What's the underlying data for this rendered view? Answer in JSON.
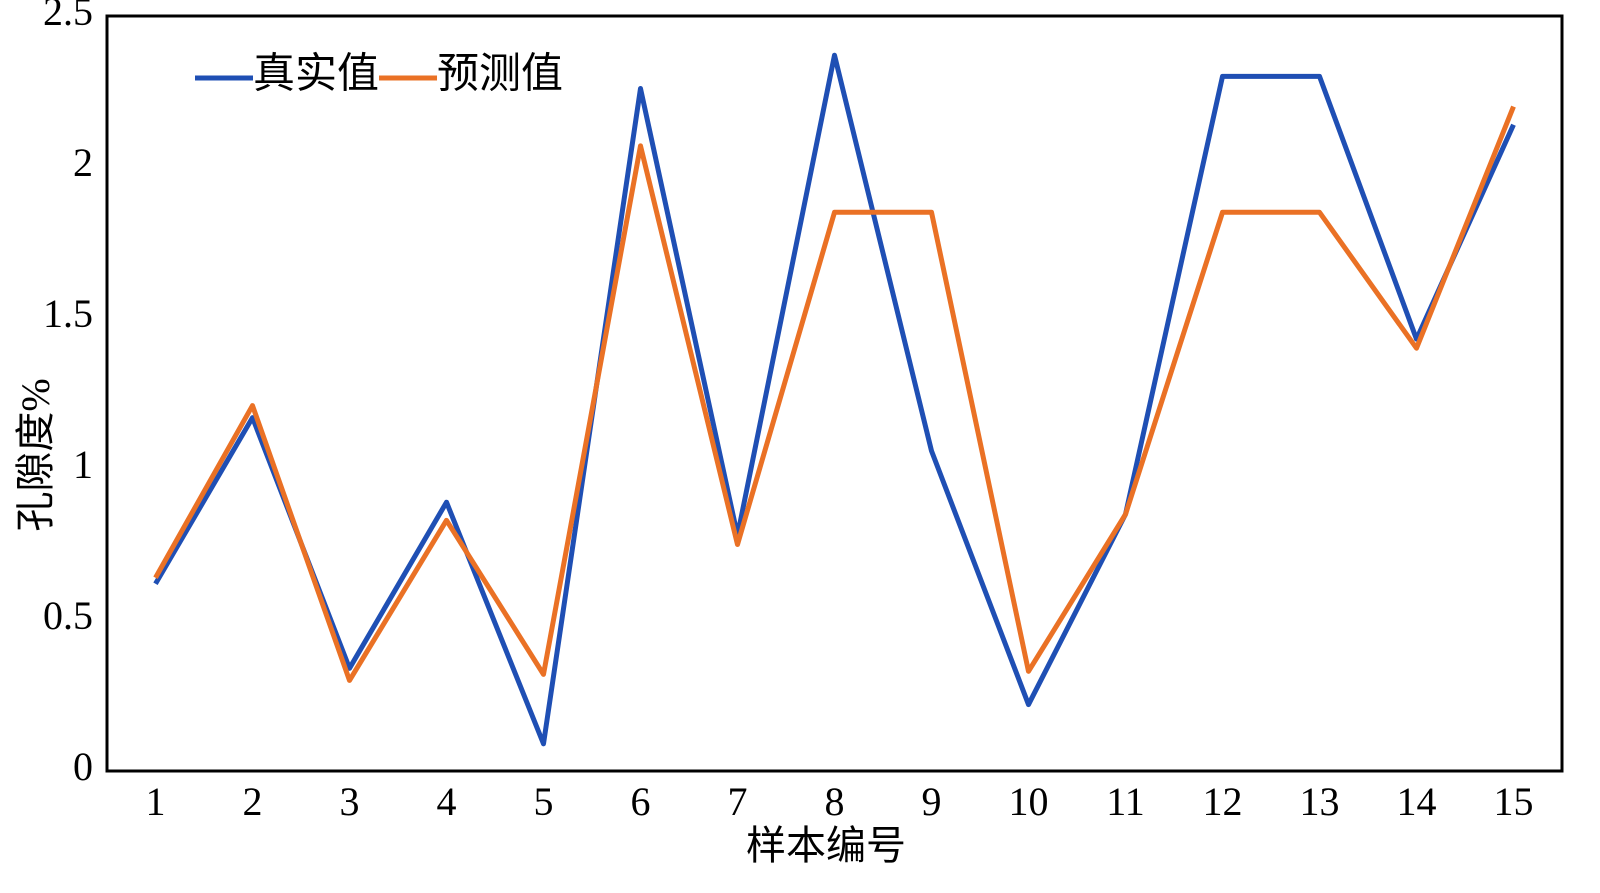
{
  "chart_data": {
    "type": "line",
    "xlabel": "样本编号",
    "ylabel": "孔隙度%",
    "categories": [
      "1",
      "2",
      "3",
      "4",
      "5",
      "6",
      "7",
      "8",
      "9",
      "10",
      "11",
      "12",
      "13",
      "14",
      "15"
    ],
    "series": [
      {
        "name": "真实值",
        "color": "#1f4fb4",
        "values": [
          0.62,
          1.17,
          0.34,
          0.89,
          0.09,
          2.26,
          0.78,
          2.37,
          1.06,
          0.22,
          0.85,
          2.3,
          2.3,
          1.43,
          2.14
        ]
      },
      {
        "name": "预测值",
        "color": "#ea7125",
        "values": [
          0.64,
          1.21,
          0.3,
          0.83,
          0.32,
          2.07,
          0.75,
          1.85,
          1.85,
          0.33,
          0.85,
          1.85,
          1.85,
          1.4,
          2.2
        ]
      }
    ],
    "ylim": [
      0,
      2.5
    ],
    "yticks": [
      0,
      0.5,
      1,
      1.5,
      2,
      2.5
    ],
    "grid": false,
    "legend": "upper left"
  }
}
